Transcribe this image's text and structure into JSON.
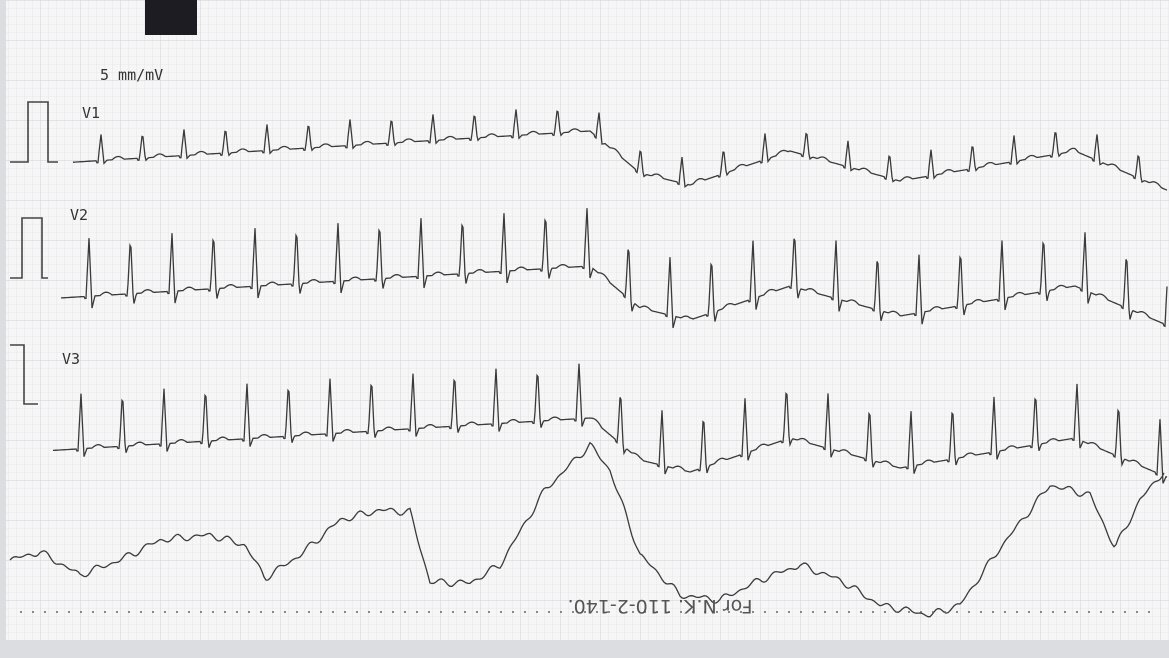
{
  "calibration": "5 mm/mV",
  "leads": [
    "V1",
    "V2",
    "V3"
  ],
  "footer": "For N.K. 110-2-140."
}
